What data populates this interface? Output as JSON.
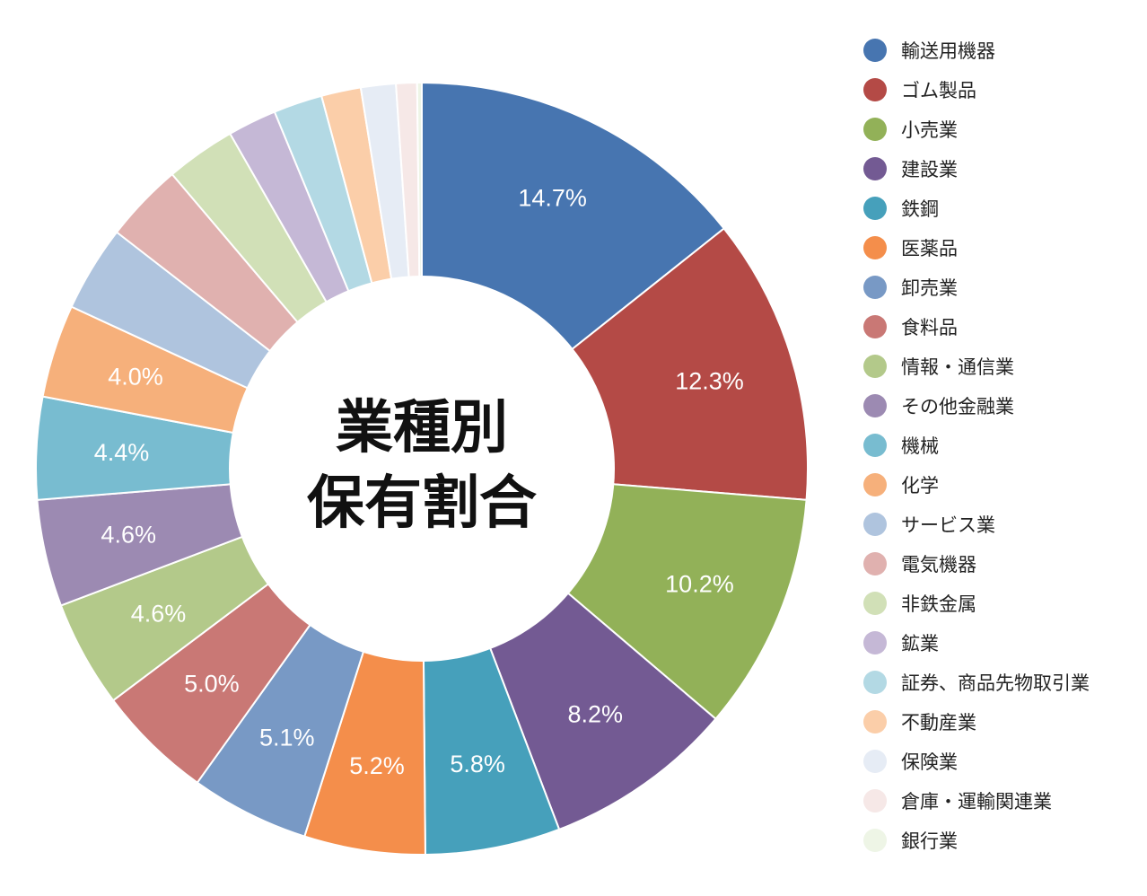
{
  "center_title": [
    "業種別",
    "保有割合"
  ],
  "chart_data": {
    "type": "pie",
    "donut": true,
    "start_angle_deg": 0,
    "direction": "clockwise",
    "legend_position": "right",
    "slices": [
      {
        "name": "輸送用機器",
        "value": 14.7,
        "label": "14.7%",
        "color": "#4775b0"
      },
      {
        "name": "ゴム製品",
        "value": 12.3,
        "label": "12.3%",
        "color": "#b44a46"
      },
      {
        "name": "小売業",
        "value": 10.2,
        "label": "10.2%",
        "color": "#92b158"
      },
      {
        "name": "建設業",
        "value": 8.2,
        "label": "8.2%",
        "color": "#735a93"
      },
      {
        "name": "鉄鋼",
        "value": 5.8,
        "label": "5.8%",
        "color": "#46a0bb"
      },
      {
        "name": "医薬品",
        "value": 5.2,
        "label": "5.2%",
        "color": "#f48e4b"
      },
      {
        "name": "卸売業",
        "value": 5.1,
        "label": "5.1%",
        "color": "#7899c5"
      },
      {
        "name": "食料品",
        "value": 5.0,
        "label": "5.0%",
        "color": "#c97875"
      },
      {
        "name": "情報・通信業",
        "value": 4.6,
        "label": "4.6%",
        "color": "#b3c98a"
      },
      {
        "name": "その他金融業",
        "value": 4.6,
        "label": "4.6%",
        "color": "#9c8ab2"
      },
      {
        "name": "機械",
        "value": 4.4,
        "label": "4.4%",
        "color": "#78bcd0"
      },
      {
        "name": "化学",
        "value": 4.0,
        "label": "4.0%",
        "color": "#f6b07b"
      },
      {
        "name": "サービス業",
        "value": 3.7,
        "label": "",
        "color": "#afc4de"
      },
      {
        "name": "電気機器",
        "value": 3.4,
        "label": "",
        "color": "#e0b1af"
      },
      {
        "name": "非鉄金属",
        "value": 3.0,
        "label": "",
        "color": "#d1e0b7"
      },
      {
        "name": "鉱業",
        "value": 2.1,
        "label": "",
        "color": "#c5b8d6"
      },
      {
        "name": "証券、商品先物取引業",
        "value": 2.1,
        "label": "",
        "color": "#b3d9e4"
      },
      {
        "name": "不動産業",
        "value": 1.7,
        "label": "",
        "color": "#fbcea9"
      },
      {
        "name": "保険業",
        "value": 1.5,
        "label": "",
        "color": "#e6ecf5"
      },
      {
        "name": "倉庫・運輸関連業",
        "value": 0.9,
        "label": "",
        "color": "#f6e8e7"
      },
      {
        "name": "銀行業",
        "value": 0.2,
        "label": "",
        "color": "#eef5e6"
      }
    ]
  }
}
